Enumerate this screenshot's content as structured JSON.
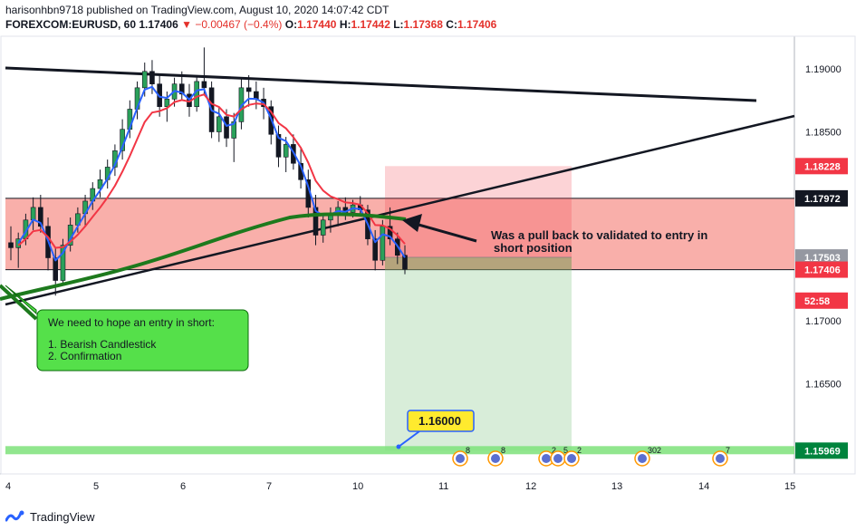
{
  "header": {
    "publisher_line": "harisonhbn9718 published on TradingView.com, August 10, 2020 14:07:42 CDT",
    "symbol": "FOREXCOM:EURUSD, 60",
    "last": "1.17406",
    "change": "▼ −0.00467 (−0.4%)",
    "o_label": "O:",
    "o_value": "1.17440",
    "h_label": "H:",
    "h_value": "1.17442",
    "l_label": "L:",
    "l_value": "1.17368",
    "c_label": "C:",
    "c_value": "1.17406"
  },
  "chart_data": {
    "type": "candlestick",
    "x_ticks": [
      "4",
      "5",
      "6",
      "7",
      "10",
      "11",
      "12",
      "13",
      "14",
      "15"
    ],
    "y_ticks": [
      "1.19000",
      "1.18500",
      "1.18000",
      "1.17500",
      "1.17000",
      "1.16500",
      "1.16000"
    ],
    "ylim": [
      1.1562,
      1.1918
    ],
    "price_labels": [
      {
        "value": 1.18228,
        "text": "1.18228",
        "color": "#f23645"
      },
      {
        "value": 1.17972,
        "text": "1.17972",
        "color": "#131722"
      },
      {
        "value": 1.17503,
        "text": "1.17503",
        "color": "#9598a1"
      },
      {
        "value": 1.17406,
        "text": "1.17406",
        "color": "#f23645"
      },
      {
        "value": 1.1716,
        "text": "52:58",
        "color": "#f23645"
      },
      {
        "value": 1.15969,
        "text": "1.15969",
        "color": "#00843d"
      }
    ],
    "resistance_zone": [
      1.17406,
      1.17972
    ],
    "short_position": {
      "entry": 1.17503,
      "stop": 1.18228,
      "target": 1.15969
    },
    "target_callout": "1.16000",
    "annotations": {
      "arrow_note_line1": "Was a pull back to validated to entry in",
      "arrow_note_line2": "short position",
      "box_title": "We need to hope an entry in short:",
      "box_item1": "1. Bearish Candlestick",
      "box_item2": "2. Confirmation"
    },
    "candles": [
      [
        1.1762,
        1.1775,
        1.1748,
        1.1758
      ],
      [
        1.1758,
        1.177,
        1.1742,
        1.1765
      ],
      [
        1.1765,
        1.1785,
        1.176,
        1.178
      ],
      [
        1.178,
        1.1798,
        1.1772,
        1.179
      ],
      [
        1.179,
        1.18,
        1.177,
        1.1775
      ],
      [
        1.1775,
        1.1782,
        1.174,
        1.175
      ],
      [
        1.175,
        1.1758,
        1.172,
        1.1732
      ],
      [
        1.1732,
        1.1765,
        1.1728,
        1.176
      ],
      [
        1.176,
        1.1782,
        1.1755,
        1.1776
      ],
      [
        1.1776,
        1.179,
        1.177,
        1.1785
      ],
      [
        1.1785,
        1.18,
        1.1775,
        1.1795
      ],
      [
        1.1795,
        1.181,
        1.1788,
        1.1805
      ],
      [
        1.1805,
        1.182,
        1.1798,
        1.1812
      ],
      [
        1.1812,
        1.1828,
        1.1805,
        1.1822
      ],
      [
        1.1822,
        1.184,
        1.1815,
        1.1835
      ],
      [
        1.1835,
        1.186,
        1.1828,
        1.1852
      ],
      [
        1.1852,
        1.1875,
        1.1845,
        1.1868
      ],
      [
        1.1868,
        1.189,
        1.186,
        1.1885
      ],
      [
        1.1885,
        1.1905,
        1.1878,
        1.1898
      ],
      [
        1.1898,
        1.1907,
        1.188,
        1.1888
      ],
      [
        1.1888,
        1.1895,
        1.1862,
        1.187
      ],
      [
        1.187,
        1.1882,
        1.1858,
        1.1876
      ],
      [
        1.1876,
        1.1893,
        1.187,
        1.1888
      ],
      [
        1.1888,
        1.1898,
        1.1875,
        1.188
      ],
      [
        1.188,
        1.1888,
        1.1862,
        1.187
      ],
      [
        1.187,
        1.1895,
        1.1866,
        1.189
      ],
      [
        1.189,
        1.1917,
        1.188,
        1.1885
      ],
      [
        1.1885,
        1.189,
        1.1845,
        1.185
      ],
      [
        1.185,
        1.187,
        1.1842,
        1.1862
      ],
      [
        1.1862,
        1.1868,
        1.1838,
        1.1845
      ],
      [
        1.1845,
        1.1865,
        1.1826,
        1.1858
      ],
      [
        1.1858,
        1.1892,
        1.1852,
        1.1885
      ],
      [
        1.1885,
        1.1895,
        1.187,
        1.1882
      ],
      [
        1.1882,
        1.189,
        1.1868,
        1.1876
      ],
      [
        1.1876,
        1.1885,
        1.186,
        1.187
      ],
      [
        1.187,
        1.1875,
        1.184,
        1.1848
      ],
      [
        1.1848,
        1.1855,
        1.1822,
        1.183
      ],
      [
        1.183,
        1.1846,
        1.1818,
        1.184
      ],
      [
        1.184,
        1.1848,
        1.182,
        1.1825
      ],
      [
        1.1825,
        1.1838,
        1.1805,
        1.1812
      ],
      [
        1.1812,
        1.182,
        1.1782,
        1.179
      ],
      [
        1.179,
        1.18,
        1.176,
        1.1768
      ],
      [
        1.1768,
        1.1785,
        1.1762,
        1.178
      ],
      [
        1.178,
        1.179,
        1.177,
        1.1785
      ],
      [
        1.1785,
        1.1795,
        1.1775,
        1.179
      ],
      [
        1.179,
        1.1798,
        1.178,
        1.1786
      ],
      [
        1.1786,
        1.1796,
        1.1782,
        1.1792
      ],
      [
        1.1792,
        1.1799,
        1.1785,
        1.1788
      ],
      [
        1.1788,
        1.1792,
        1.176,
        1.1765
      ],
      [
        1.1765,
        1.1772,
        1.174,
        1.1748
      ],
      [
        1.1748,
        1.178,
        1.1744,
        1.1775
      ],
      [
        1.1775,
        1.179,
        1.176,
        1.1765
      ],
      [
        1.1765,
        1.177,
        1.1745,
        1.1752
      ],
      [
        1.1752,
        1.176,
        1.1737,
        1.1741
      ]
    ]
  },
  "footer": {
    "brand": "TradingView"
  }
}
